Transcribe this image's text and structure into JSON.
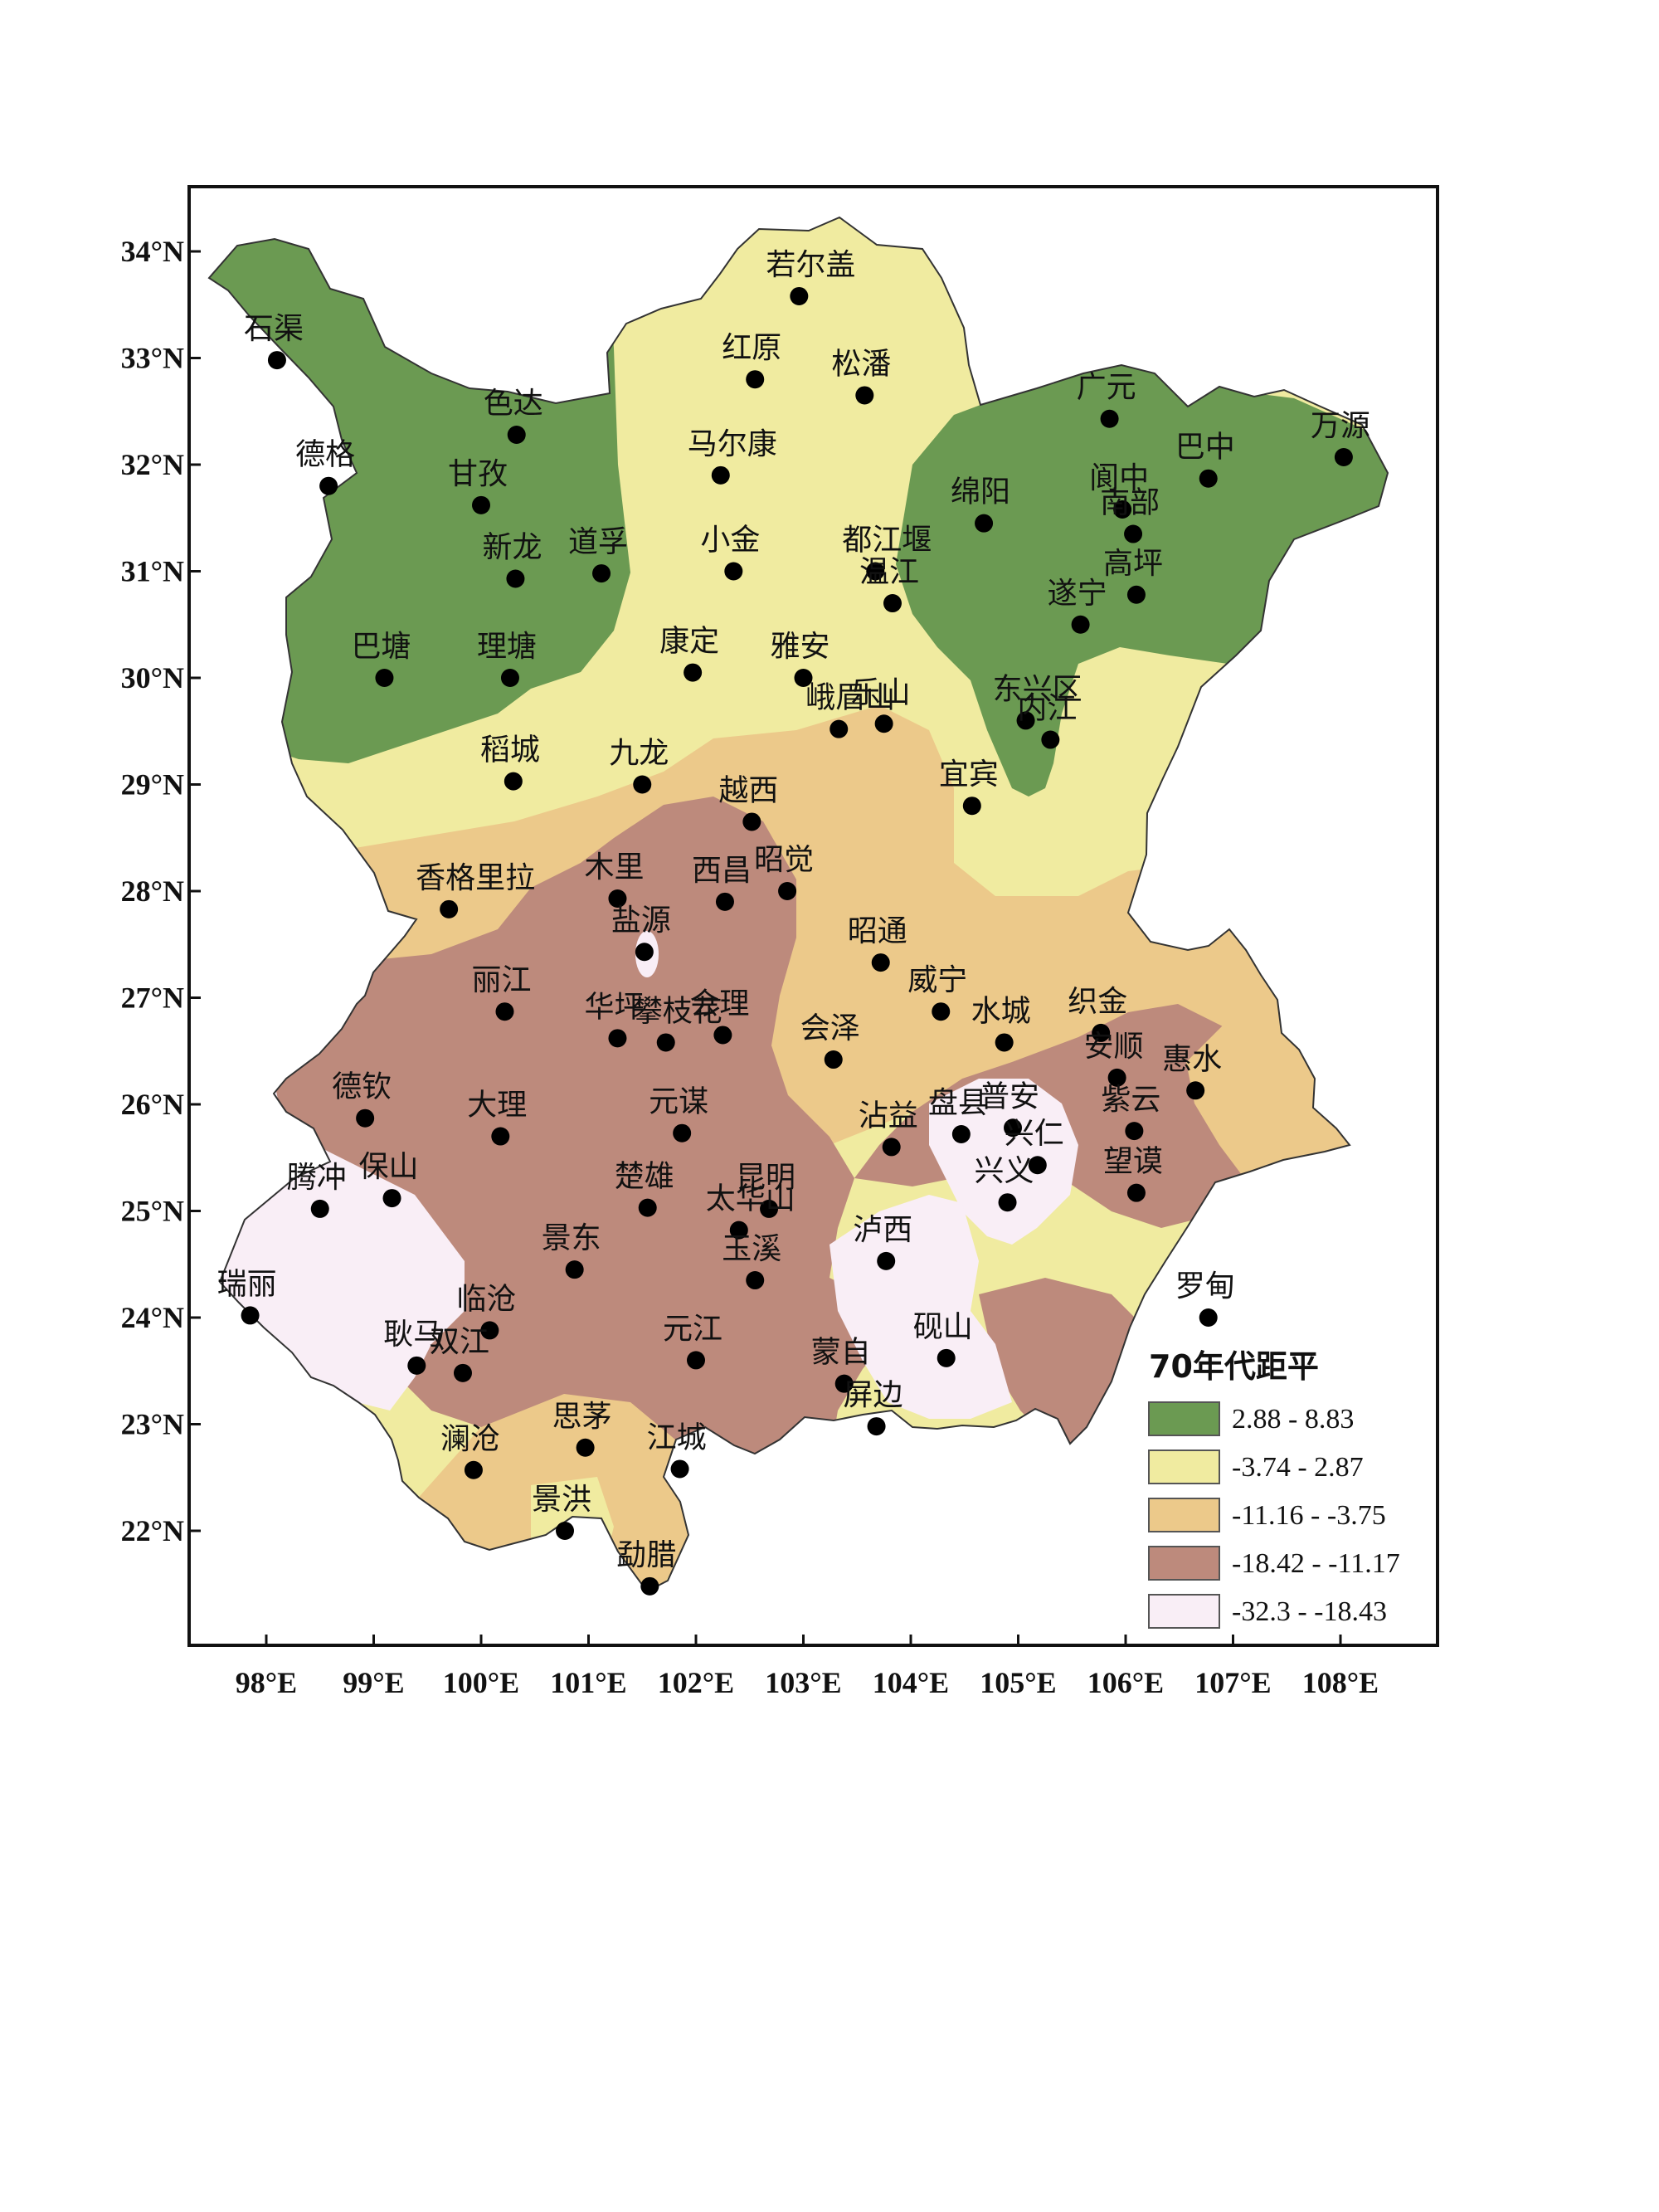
{
  "legend": {
    "title": "70年代距平",
    "classes": [
      {
        "label": "2.88 - 8.83",
        "color": "#6b9a52"
      },
      {
        "label": "-3.74 - 2.87",
        "color": "#f0eba0"
      },
      {
        "label": "-11.16 - -3.75",
        "color": "#ecc98a"
      },
      {
        "label": "-18.42 - -11.17",
        "color": "#bd8a7c"
      },
      {
        "label": "-32.3 - -18.43",
        "color": "#f9eef6"
      }
    ]
  },
  "axes": {
    "x_ticks": [
      "98°E",
      "99°E",
      "100°E",
      "101°E",
      "102°E",
      "103°E",
      "104°E",
      "105°E",
      "106°E",
      "107°E",
      "108°E"
    ],
    "y_ticks": [
      "34°N",
      "33°N",
      "32°N",
      "31°N",
      "30°N",
      "29°N",
      "28°N",
      "27°N",
      "26°N",
      "25°N",
      "24°N",
      "23°N",
      "22°N"
    ]
  },
  "stations": [
    {
      "name": "若尔盖",
      "lon": 102.96,
      "lat": 33.58
    },
    {
      "name": "石渠",
      "lon": 98.1,
      "lat": 32.98
    },
    {
      "name": "红原",
      "lon": 102.55,
      "lat": 32.8
    },
    {
      "name": "松潘",
      "lon": 103.57,
      "lat": 32.65
    },
    {
      "name": "色达",
      "lon": 100.33,
      "lat": 32.28
    },
    {
      "name": "广元",
      "lon": 105.85,
      "lat": 32.43
    },
    {
      "name": "万源",
      "lon": 108.03,
      "lat": 32.07
    },
    {
      "name": "德格",
      "lon": 98.58,
      "lat": 31.8
    },
    {
      "name": "马尔康",
      "lon": 102.23,
      "lat": 31.9
    },
    {
      "name": "巴中",
      "lon": 106.77,
      "lat": 31.87
    },
    {
      "name": "甘孜",
      "lon": 100.0,
      "lat": 31.62
    },
    {
      "name": "阆中",
      "lon": 105.97,
      "lat": 31.58
    },
    {
      "name": "南部",
      "lon": 106.07,
      "lat": 31.35
    },
    {
      "name": "绵阳",
      "lon": 104.68,
      "lat": 31.45
    },
    {
      "name": "新龙",
      "lon": 100.32,
      "lat": 30.93
    },
    {
      "name": "道孚",
      "lon": 101.12,
      "lat": 30.98
    },
    {
      "name": "小金",
      "lon": 102.35,
      "lat": 31.0
    },
    {
      "name": "都江堰",
      "lon": 103.67,
      "lat": 31.0
    },
    {
      "name": "温江",
      "lon": 103.83,
      "lat": 30.7
    },
    {
      "name": "遂宁",
      "lon": 105.58,
      "lat": 30.5
    },
    {
      "name": "高坪",
      "lon": 106.1,
      "lat": 30.78
    },
    {
      "name": "巴塘",
      "lon": 99.1,
      "lat": 30.0
    },
    {
      "name": "理塘",
      "lon": 100.27,
      "lat": 30.0
    },
    {
      "name": "康定",
      "lon": 101.97,
      "lat": 30.05
    },
    {
      "name": "雅安",
      "lon": 103.0,
      "lat": 30.0
    },
    {
      "name": "东兴区",
      "lon": 105.07,
      "lat": 29.6
    },
    {
      "name": "峨眉山",
      "lon": 103.33,
      "lat": 29.52
    },
    {
      "name": "乐山",
      "lon": 103.75,
      "lat": 29.57
    },
    {
      "name": "内江",
      "lon": 105.3,
      "lat": 29.42
    },
    {
      "name": "稻城",
      "lon": 100.3,
      "lat": 29.03
    },
    {
      "name": "九龙",
      "lon": 101.5,
      "lat": 29.0
    },
    {
      "name": "宜宾",
      "lon": 104.57,
      "lat": 28.8
    },
    {
      "name": "越西",
      "lon": 102.52,
      "lat": 28.65
    },
    {
      "name": "香格里拉",
      "lon": 99.7,
      "lat": 27.83
    },
    {
      "name": "木里",
      "lon": 101.27,
      "lat": 27.93
    },
    {
      "name": "西昌",
      "lon": 102.27,
      "lat": 27.9
    },
    {
      "name": "昭觉",
      "lon": 102.85,
      "lat": 28.0
    },
    {
      "name": "盐源",
      "lon": 101.52,
      "lat": 27.43
    },
    {
      "name": "昭通",
      "lon": 103.72,
      "lat": 27.33
    },
    {
      "name": "威宁",
      "lon": 104.28,
      "lat": 26.87
    },
    {
      "name": "丽江",
      "lon": 100.22,
      "lat": 26.87
    },
    {
      "name": "华坪",
      "lon": 101.27,
      "lat": 26.62
    },
    {
      "name": "会理",
      "lon": 102.25,
      "lat": 26.65
    },
    {
      "name": "攀枝花",
      "lon": 101.72,
      "lat": 26.58
    },
    {
      "name": "会泽",
      "lon": 103.28,
      "lat": 26.42
    },
    {
      "name": "水城",
      "lon": 104.87,
      "lat": 26.58
    },
    {
      "name": "织金",
      "lon": 105.77,
      "lat": 26.67
    },
    {
      "name": "安顺",
      "lon": 105.92,
      "lat": 26.25
    },
    {
      "name": "惠水",
      "lon": 106.65,
      "lat": 26.13
    },
    {
      "name": "德钦",
      "lon": 98.92,
      "lat": 25.87
    },
    {
      "name": "大理",
      "lon": 100.18,
      "lat": 25.7
    },
    {
      "name": "元谋",
      "lon": 101.87,
      "lat": 25.73
    },
    {
      "name": "沾益",
      "lon": 103.82,
      "lat": 25.6
    },
    {
      "name": "盘县",
      "lon": 104.47,
      "lat": 25.72
    },
    {
      "name": "普安",
      "lon": 104.95,
      "lat": 25.78
    },
    {
      "name": "紫云",
      "lon": 106.08,
      "lat": 25.75
    },
    {
      "name": "兴仁",
      "lon": 105.18,
      "lat": 25.43
    },
    {
      "name": "望谟",
      "lon": 106.1,
      "lat": 25.17
    },
    {
      "name": "兴义",
      "lon": 104.9,
      "lat": 25.08
    },
    {
      "name": "腾冲",
      "lon": 98.5,
      "lat": 25.02
    },
    {
      "name": "保山",
      "lon": 99.17,
      "lat": 25.12
    },
    {
      "name": "昆明",
      "lon": 102.68,
      "lat": 25.02
    },
    {
      "name": "楚雄",
      "lon": 101.55,
      "lat": 25.03
    },
    {
      "name": "太华山",
      "lon": 102.4,
      "lat": 24.82
    },
    {
      "name": "泸西",
      "lon": 103.77,
      "lat": 24.53
    },
    {
      "name": "玉溪",
      "lon": 102.55,
      "lat": 24.35
    },
    {
      "name": "景东",
      "lon": 100.87,
      "lat": 24.45
    },
    {
      "name": "瑞丽",
      "lon": 97.85,
      "lat": 24.02
    },
    {
      "name": "罗甸",
      "lon": 106.77,
      "lat": 24.0
    },
    {
      "name": "临沧",
      "lon": 100.08,
      "lat": 23.88
    },
    {
      "name": "元江",
      "lon": 102.0,
      "lat": 23.6
    },
    {
      "name": "砚山",
      "lon": 104.33,
      "lat": 23.62
    },
    {
      "name": "耿马",
      "lon": 99.4,
      "lat": 23.55
    },
    {
      "name": "双江",
      "lon": 99.83,
      "lat": 23.48
    },
    {
      "name": "蒙自",
      "lon": 103.38,
      "lat": 23.38
    },
    {
      "name": "屏边",
      "lon": 103.68,
      "lat": 22.98
    },
    {
      "name": "思茅",
      "lon": 100.97,
      "lat": 22.78
    },
    {
      "name": "澜沧",
      "lon": 99.93,
      "lat": 22.57
    },
    {
      "name": "江城",
      "lon": 101.85,
      "lat": 22.58
    },
    {
      "name": "景洪",
      "lon": 100.78,
      "lat": 22.0
    },
    {
      "name": "勐腊",
      "lon": 101.57,
      "lat": 21.48
    }
  ]
}
